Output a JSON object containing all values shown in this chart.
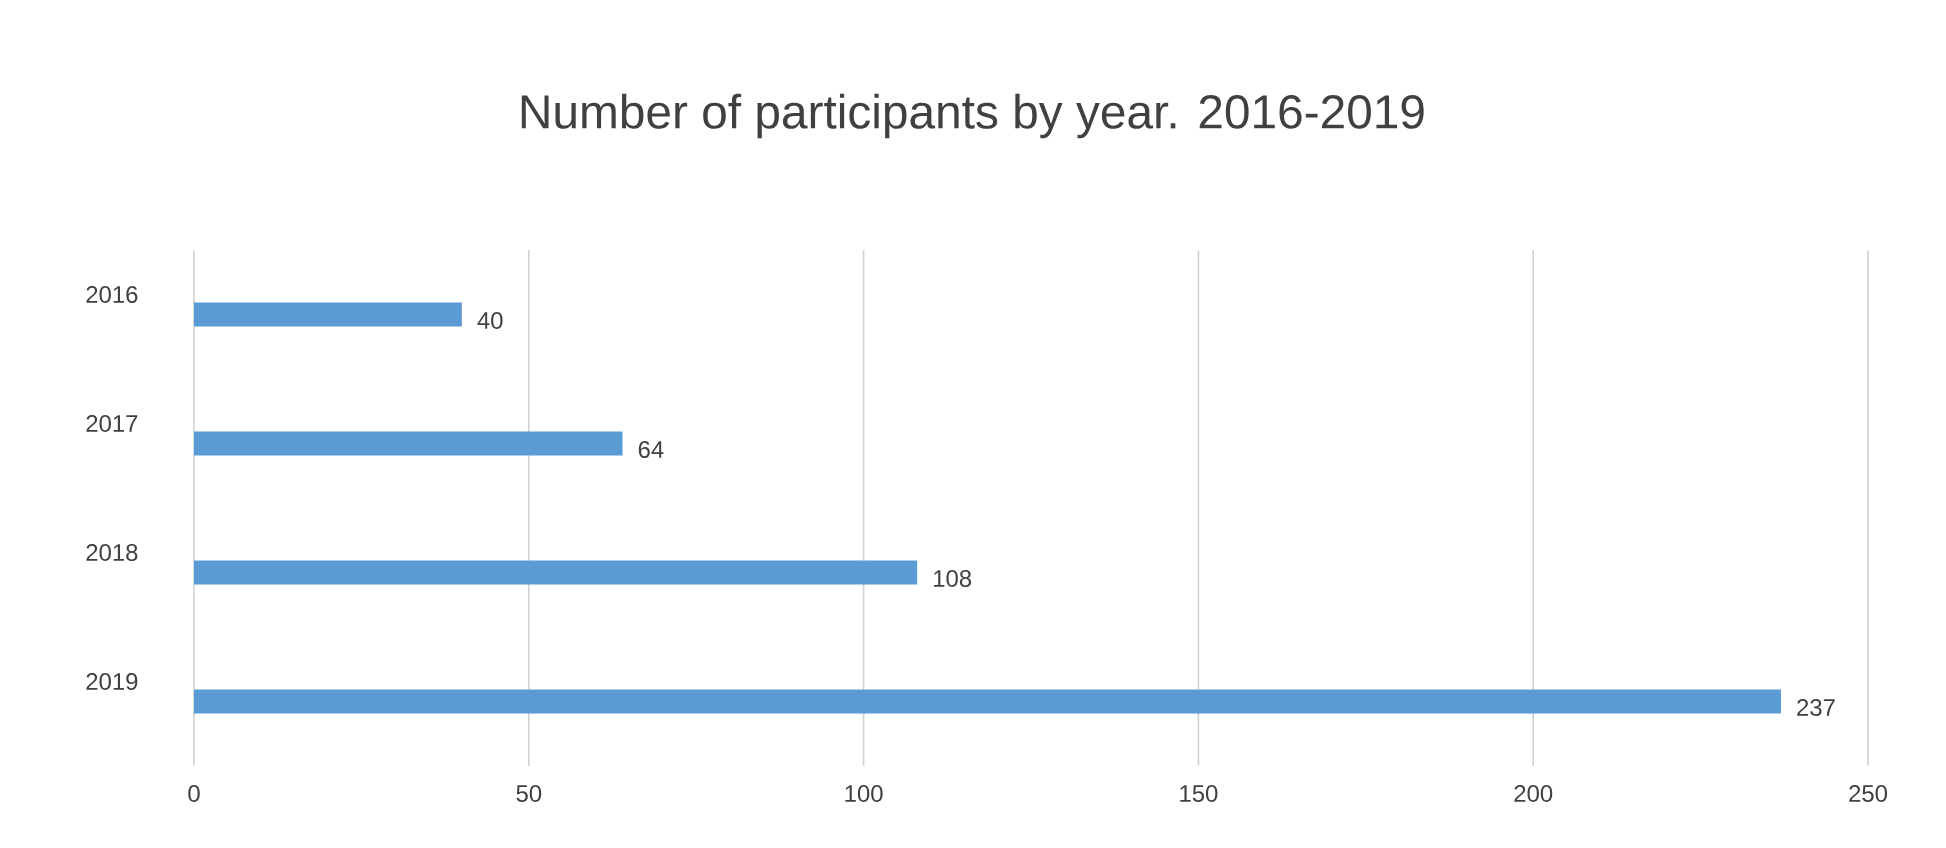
{
  "chart_data": {
    "type": "bar",
    "orientation": "horizontal",
    "title": "Number of participants by year. 2016-2019",
    "categories": [
      "2016",
      "2017",
      "2018",
      "2019"
    ],
    "values": [
      40,
      64,
      108,
      237
    ],
    "color": "#5b9bd5",
    "xlim": [
      0,
      250
    ],
    "xticks": [
      0,
      50,
      100,
      150,
      200,
      250
    ],
    "grid": "x",
    "data_labels": true
  }
}
